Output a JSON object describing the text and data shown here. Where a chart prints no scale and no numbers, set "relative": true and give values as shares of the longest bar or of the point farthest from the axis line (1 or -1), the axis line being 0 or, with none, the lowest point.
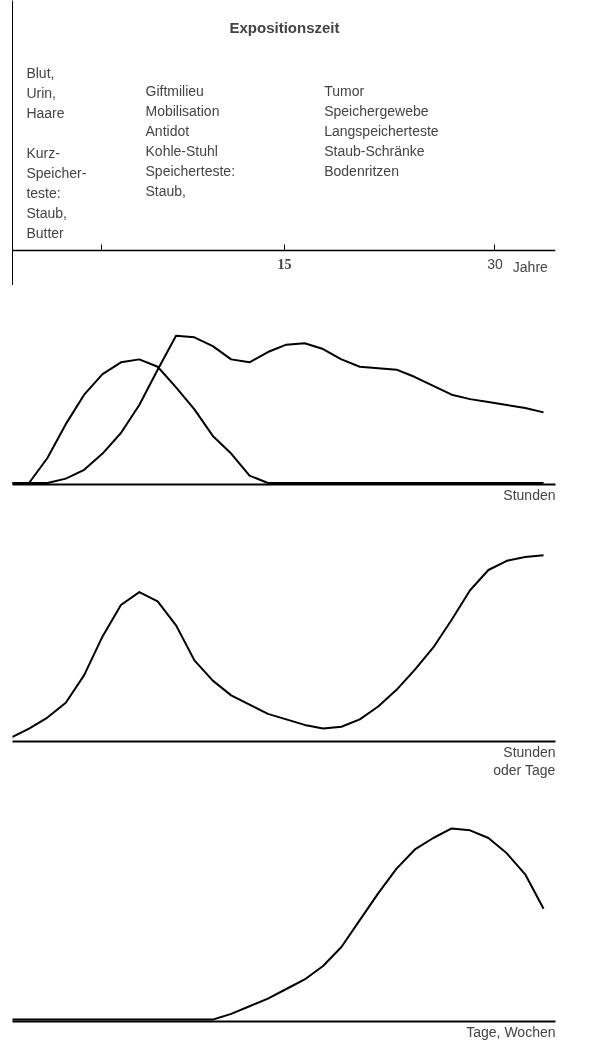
{
  "chart_data": [
    {
      "type": "other",
      "title": "Expositionszeit",
      "annotations": [
        "Blut,\nUrin,\nHaare\n\nKurz-\nSpeicher-\nteste:\nStaub,\nButter",
        "Giftmilieu\nMobilisation\nAntidot\nKohle-Stuhl\nSpeicherteste:\n  Staub,",
        "Tumor\nSpeichergewebe\nLangspeicherteste\nStaub-Schränke\n  Bodenritzen",
        "15",
        "30"
      ],
      "xlabel": "Jahre"
    },
    {
      "type": "line",
      "relative": true,
      "xlabel": "Stunden",
      "categories": [
        null,
        null,
        null,
        null,
        null,
        null,
        null,
        null,
        null,
        null,
        null,
        null,
        null,
        null,
        null,
        null,
        null,
        null,
        null,
        null,
        null,
        null,
        null,
        null,
        null,
        null,
        null,
        null,
        null,
        null
      ],
      "series": [
        {
          "color": "#000000",
          "values": [
            0,
            0.0,
            0.17,
            0.4,
            0.6,
            0.74,
            0.82,
            0.84,
            0.79,
            0.65,
            0.5,
            0.32,
            0.2,
            0.05,
            0.0,
            0,
            0,
            0,
            0,
            0,
            0,
            0,
            0,
            0,
            0,
            0,
            0,
            0,
            0,
            0
          ]
        },
        {
          "color": "#000000",
          "values": [
            0,
            0,
            0,
            0.03,
            0.09,
            0.2,
            0.34,
            0.53,
            0.77,
            1.0,
            0.99,
            0.93,
            0.84,
            0.82,
            0.89,
            0.94,
            0.95,
            0.91,
            0.84,
            0.79,
            0.78,
            0.77,
            0.72,
            0.66,
            0.6,
            0.57,
            0.55,
            0.53,
            0.51,
            0.48
          ]
        }
      ]
    },
    {
      "type": "line",
      "relative": true,
      "xlabel": "Stunden\noder Tage",
      "categories": [
        null,
        null,
        null,
        null,
        null,
        null,
        null,
        null,
        null,
        null,
        null,
        null,
        null,
        null,
        null,
        null,
        null,
        null,
        null,
        null,
        null,
        null,
        null,
        null,
        null,
        null,
        null,
        null,
        null,
        null
      ],
      "series": [
        {
          "color": "#000000",
          "values": [
            0.01,
            0.06,
            0.12,
            0.2,
            0.35,
            0.56,
            0.73,
            0.8,
            0.75,
            0.62,
            0.43,
            0.32,
            0.24,
            0.19,
            0.14,
            0.11,
            0.08,
            0.06,
            0.07,
            0.11,
            0.18,
            0.27,
            0.38,
            0.5,
            0.65,
            0.81,
            0.92,
            0.97,
            0.99,
            1.0
          ]
        }
      ]
    },
    {
      "type": "line",
      "relative": true,
      "xlabel": "Tage, Wochen",
      "categories": [
        null,
        null,
        null,
        null,
        null,
        null,
        null,
        null,
        null,
        null,
        null,
        null,
        null,
        null,
        null,
        null,
        null,
        null,
        null,
        null,
        null,
        null,
        null,
        null,
        null,
        null,
        null,
        null,
        null,
        null
      ],
      "series": [
        {
          "color": "#000000",
          "values": [
            0,
            0,
            0,
            0,
            0,
            0,
            0,
            0,
            0,
            0,
            0,
            0,
            0.03,
            0.07,
            0.11,
            0.16,
            0.21,
            0.28,
            0.38,
            0.52,
            0.66,
            0.79,
            0.89,
            0.95,
            1.0,
            0.99,
            0.95,
            0.87,
            0.76,
            0.58
          ]
        }
      ]
    }
  ]
}
